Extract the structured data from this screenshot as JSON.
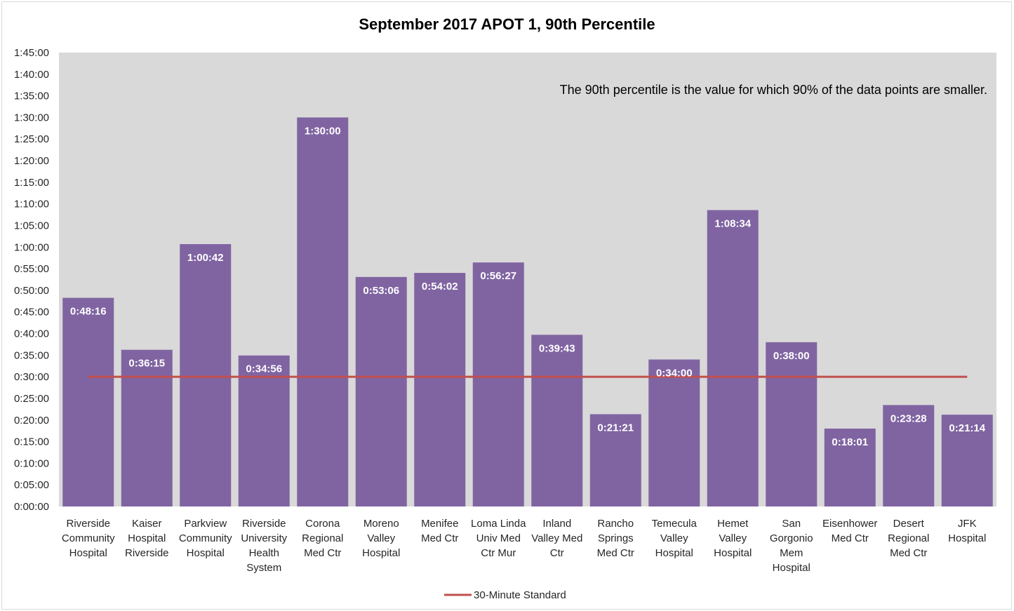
{
  "chart_data": {
    "type": "bar",
    "title": "September 2017 APOT 1, 90th Percentile",
    "annotation": "The 90th percentile is the value for which 90% of the data points are smaller.",
    "xlabel": "",
    "ylabel": "",
    "ylim_seconds": [
      0,
      6300
    ],
    "y_ticks": [
      "0:00:00",
      "0:05:00",
      "0:10:00",
      "0:15:00",
      "0:20:00",
      "0:25:00",
      "0:30:00",
      "0:35:00",
      "0:40:00",
      "0:45:00",
      "0:50:00",
      "0:55:00",
      "1:00:00",
      "1:05:00",
      "1:10:00",
      "1:15:00",
      "1:20:00",
      "1:25:00",
      "1:30:00",
      "1:35:00",
      "1:40:00",
      "1:45:00"
    ],
    "grid": false,
    "legend_position": "bottom",
    "categories": [
      [
        "Riverside",
        "Community",
        "Hospital"
      ],
      [
        "Kaiser",
        "Hospital",
        "Riverside"
      ],
      [
        "Parkview",
        "Community",
        "Hospital"
      ],
      [
        "Riverside",
        "University",
        "Health",
        "System"
      ],
      [
        "Corona",
        "Regional",
        "Med Ctr"
      ],
      [
        "Moreno",
        "Valley",
        "Hospital"
      ],
      [
        "Menifee",
        "Med Ctr"
      ],
      [
        "Loma Linda",
        "Univ Med",
        "Ctr Mur"
      ],
      [
        "Inland",
        "Valley Med",
        "Ctr"
      ],
      [
        "Rancho",
        "Springs",
        "Med Ctr"
      ],
      [
        "Temecula",
        "Valley",
        "Hospital"
      ],
      [
        "Hemet",
        "Valley",
        "Hospital"
      ],
      [
        "San",
        "Gorgonio",
        "Mem",
        "Hospital"
      ],
      [
        "Eisenhower",
        "Med Ctr"
      ],
      [
        "Desert",
        "Regional",
        "Med Ctr"
      ],
      [
        "JFK",
        "Hospital"
      ]
    ],
    "values": [
      "0:48:16",
      "0:36:15",
      "1:00:42",
      "0:34:56",
      "1:30:00",
      "0:53:06",
      "0:54:02",
      "0:56:27",
      "0:39:43",
      "0:21:21",
      "0:34:00",
      "1:08:34",
      "0:38:00",
      "0:18:01",
      "0:23:28",
      "0:21:14"
    ],
    "values_seconds": [
      2896,
      2175,
      3642,
      2096,
      5400,
      3186,
      3242,
      3387,
      2383,
      1281,
      2040,
      4114,
      2280,
      1081,
      1408,
      1274
    ],
    "reference_line": {
      "name": "30-Minute Standard",
      "value": "0:30:00",
      "value_seconds": 1800
    },
    "colors": {
      "bar": "#8064a2",
      "plot_bg": "#d9d9d9",
      "reference": "#c0504d"
    }
  }
}
